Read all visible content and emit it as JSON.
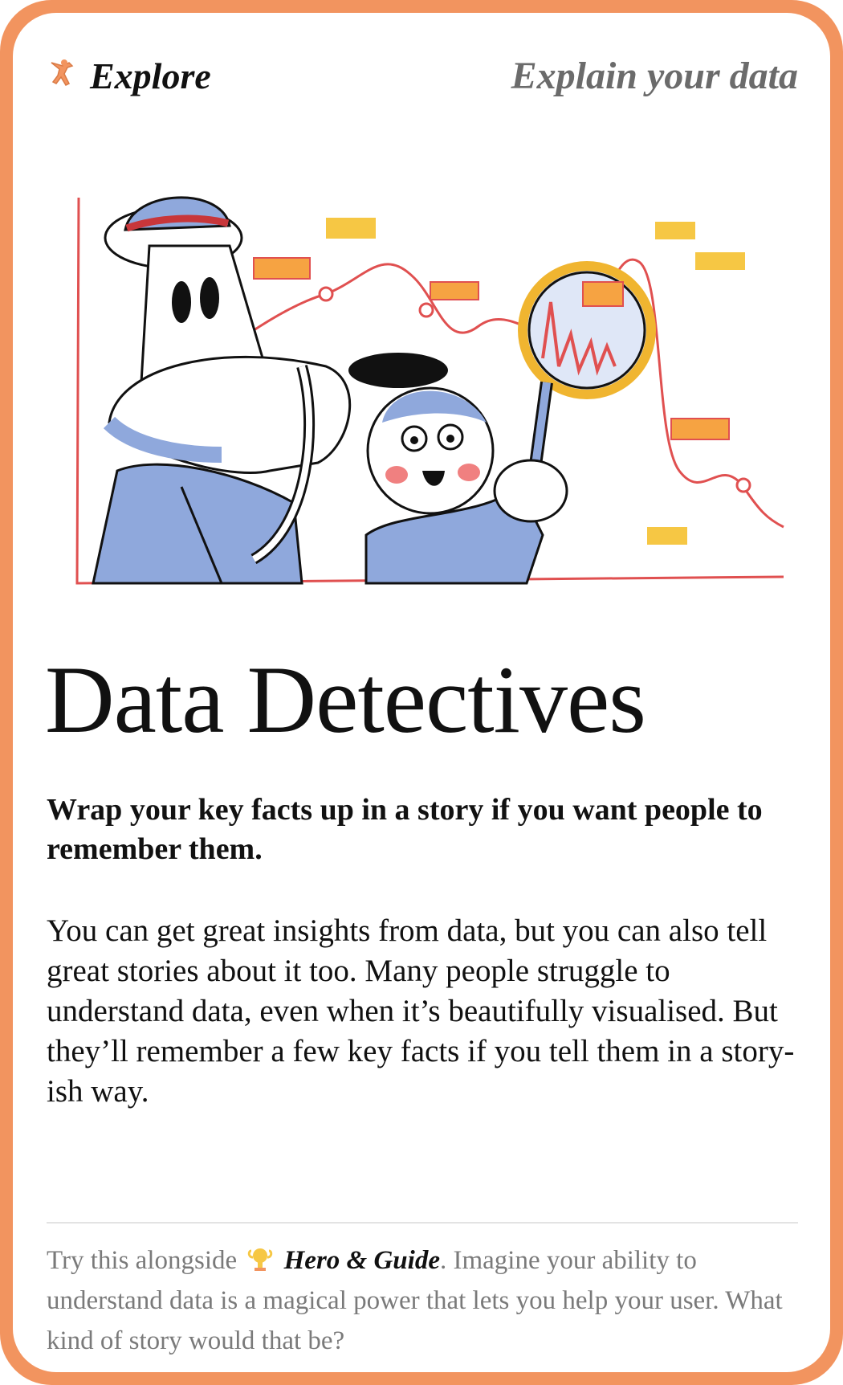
{
  "header": {
    "category_label": "Explore",
    "category_icon": "explorer-figure-icon",
    "tagline": "Explain your data"
  },
  "card": {
    "title": "Data Detectives",
    "lead": "Wrap your key facts up in a story if you want people to remember them.",
    "body": "You can get great insights from data, but you can also tell great stories about it too. Many people struggle to understand data, even when it’s beautifully visualised. But they’ll remember a few key facts if you tell them in a story-ish way."
  },
  "footer": {
    "prefix": "Try this alongside",
    "ref_icon": "hero-trophy-icon",
    "ref_label": "Hero & Guide",
    "suffix": ". Imagine your ability to understand data is a magical power that lets you help your user. What kind of story would that be?"
  },
  "colors": {
    "frame": "#f2945f",
    "accent_red": "#e05050",
    "accent_blue": "#8fa8dc",
    "accent_yellow": "#f6c744"
  }
}
